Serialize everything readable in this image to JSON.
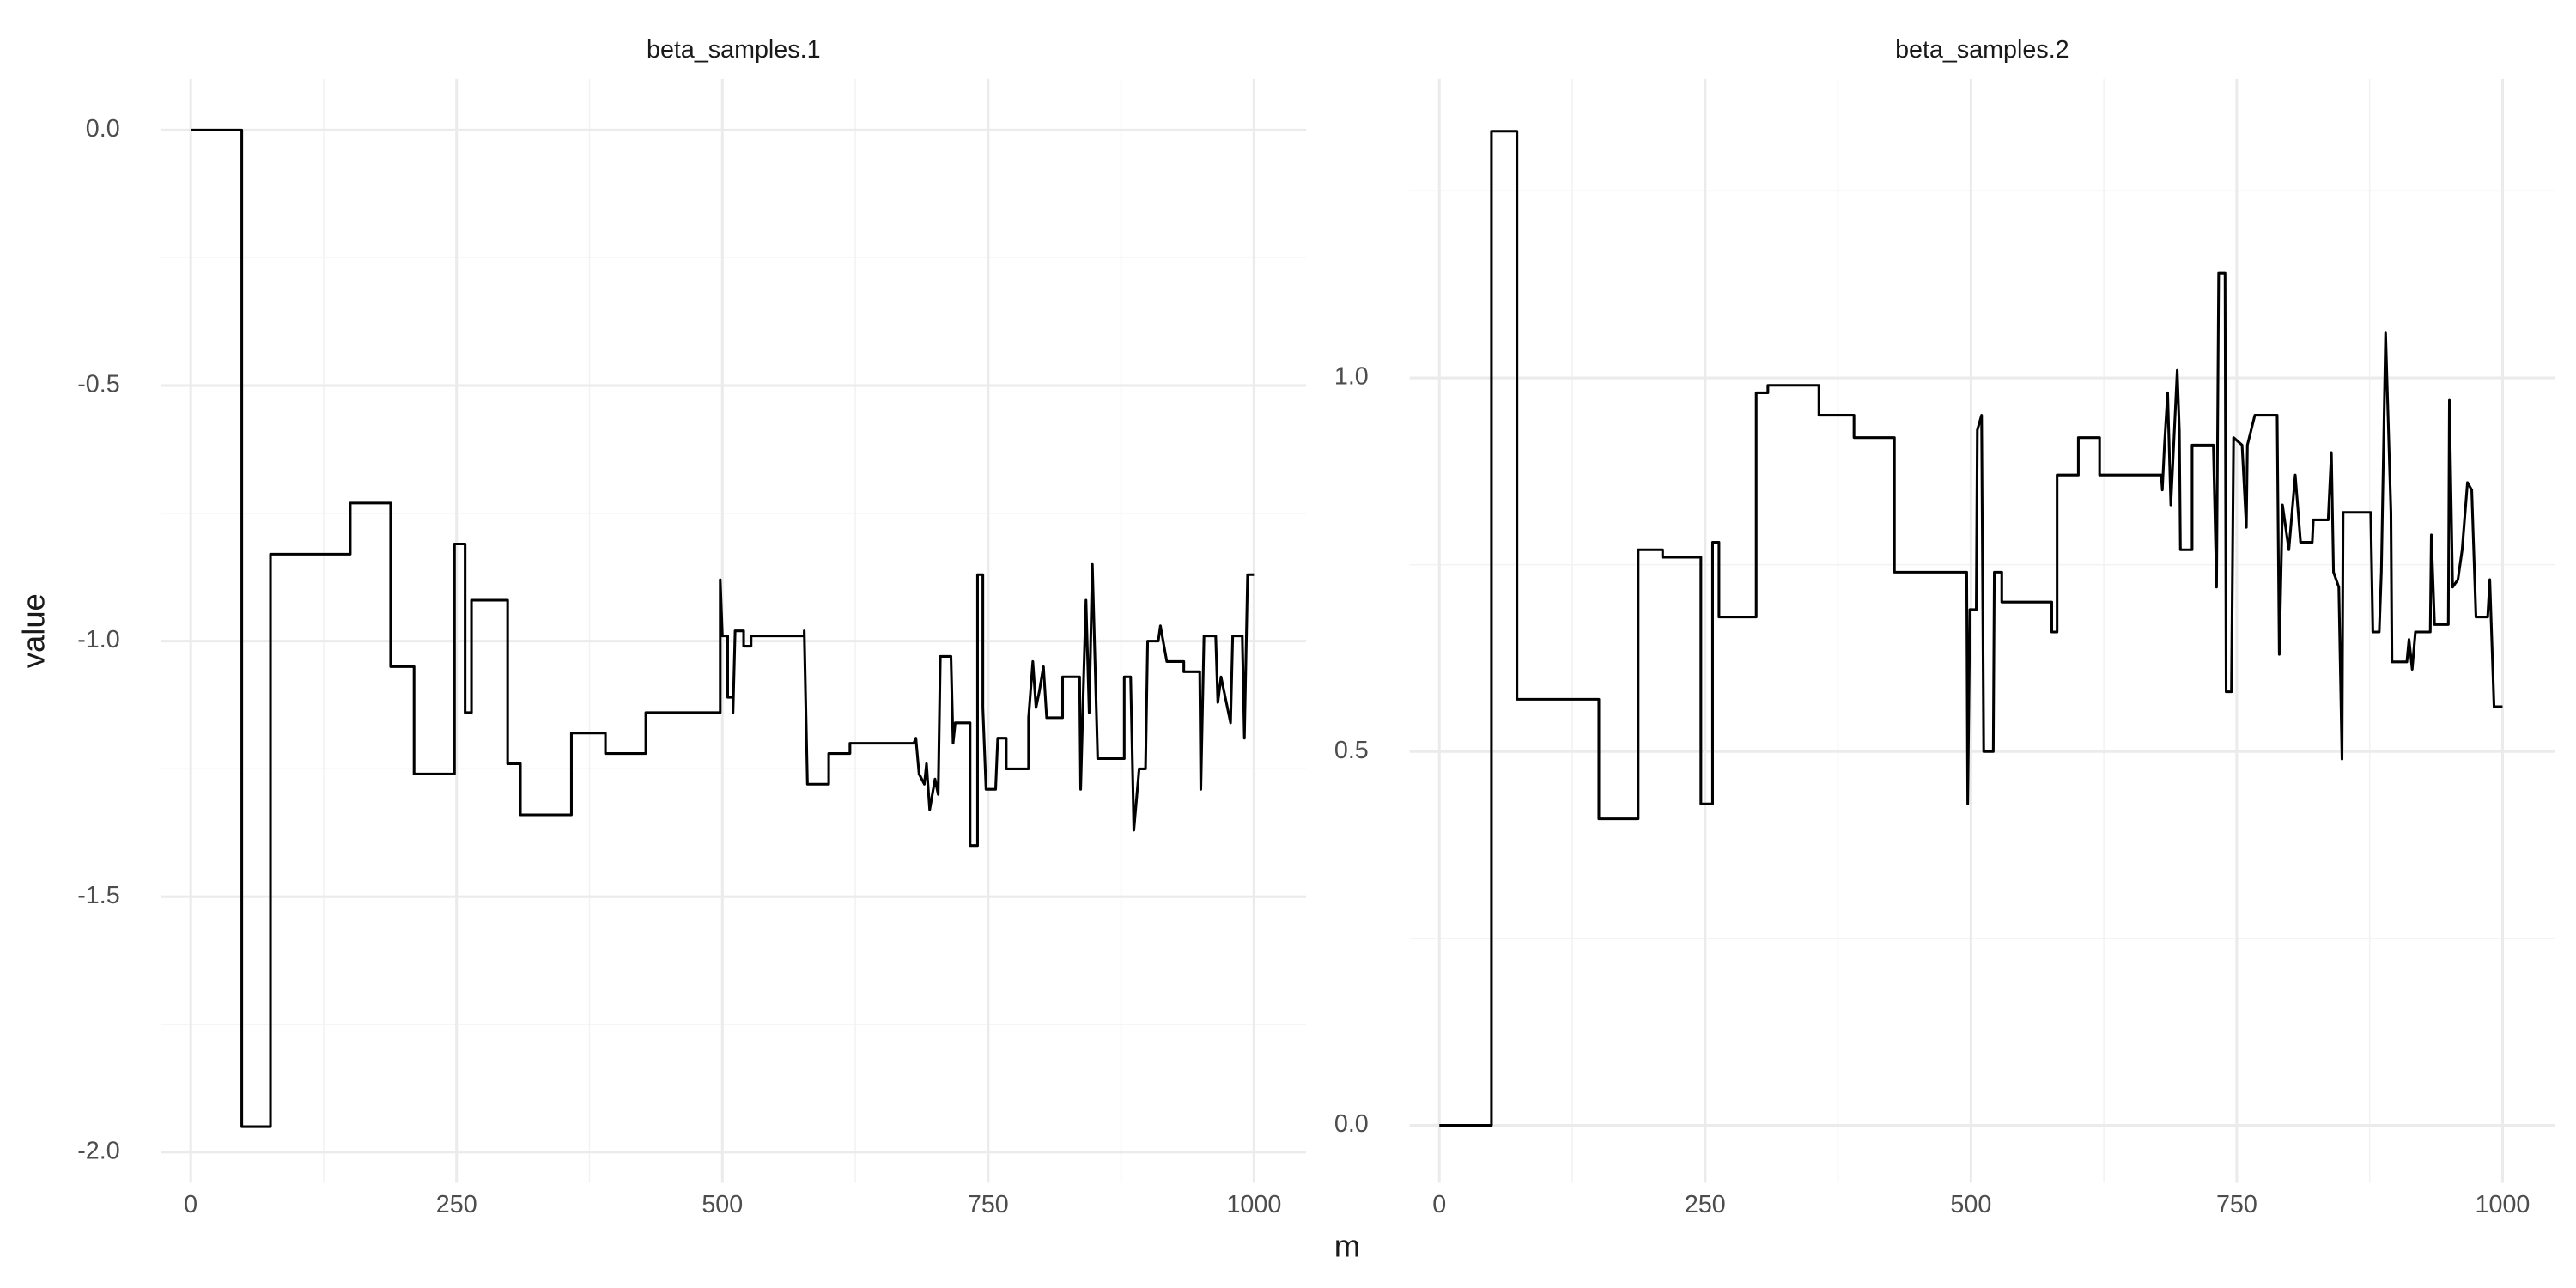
{
  "xlabel": "m",
  "ylabel": "value",
  "chart_data": [
    {
      "type": "line",
      "title": "beta_samples.1",
      "grid": true,
      "minor_grid": true,
      "xlim": [
        -28,
        1049
      ],
      "ylim": [
        -2.06,
        0.1
      ],
      "xticks": [
        0,
        250,
        500,
        750,
        1000
      ],
      "yticks": [
        {
          "value": -2,
          "label": "-2.0"
        },
        {
          "value": -1.5,
          "label": "-1.5"
        },
        {
          "value": -1,
          "label": "-1.0"
        },
        {
          "value": -0.5,
          "label": "-0.5"
        },
        {
          "value": 0,
          "label": "0.0"
        }
      ],
      "x": [
        0,
        48,
        48,
        75,
        75,
        150,
        150,
        188,
        188,
        210,
        210,
        248,
        248,
        258,
        258,
        264,
        264,
        298,
        298,
        310,
        310,
        358,
        358,
        390,
        390,
        428,
        428,
        498,
        498,
        500,
        505,
        505,
        510,
        510,
        512,
        520,
        520,
        527,
        527,
        577,
        577,
        580,
        600,
        600,
        620,
        620,
        680,
        682,
        685,
        690,
        692,
        695,
        700,
        703,
        705,
        715,
        717,
        719,
        733,
        733,
        740,
        740,
        745,
        745,
        748,
        757,
        759,
        767,
        767,
        788,
        788,
        792,
        795,
        798,
        802,
        805,
        820,
        820,
        836,
        837,
        840,
        842,
        845,
        848,
        853,
        878,
        878,
        884,
        887,
        892,
        898,
        900,
        910,
        912,
        918,
        934,
        934,
        949,
        950,
        953,
        964,
        966,
        969,
        978,
        980,
        989,
        991,
        994,
        1000
      ],
      "series": [
        {
          "color": "#000000",
          "values": [
            0,
            0,
            -1.95,
            -1.95,
            -0.83,
            -0.83,
            -0.73,
            -0.73,
            -1.05,
            -1.05,
            -1.26,
            -1.26,
            -0.81,
            -0.81,
            -1.14,
            -1.14,
            -0.92,
            -0.92,
            -1.24,
            -1.24,
            -1.34,
            -1.34,
            -1.18,
            -1.18,
            -1.22,
            -1.22,
            -1.14,
            -1.14,
            -0.88,
            -0.99,
            -0.99,
            -1.11,
            -1.11,
            -1.14,
            -0.98,
            -0.98,
            -1.01,
            -1.01,
            -0.99,
            -0.99,
            -0.98,
            -1.28,
            -1.28,
            -1.22,
            -1.22,
            -1.2,
            -1.2,
            -1.19,
            -1.26,
            -1.28,
            -1.24,
            -1.33,
            -1.27,
            -1.3,
            -1.03,
            -1.03,
            -1.2,
            -1.16,
            -1.16,
            -1.4,
            -1.4,
            -0.87,
            -0.87,
            -1.13,
            -1.29,
            -1.29,
            -1.19,
            -1.19,
            -1.25,
            -1.25,
            -1.15,
            -1.04,
            -1.13,
            -1.1,
            -1.05,
            -1.15,
            -1.15,
            -1.07,
            -1.07,
            -1.29,
            -1.06,
            -0.92,
            -1.14,
            -0.85,
            -1.23,
            -1.23,
            -1.07,
            -1.07,
            -1.37,
            -1.25,
            -1.25,
            -1.0,
            -1.0,
            -0.97,
            -1.04,
            -1.04,
            -1.06,
            -1.06,
            -1.29,
            -0.99,
            -0.99,
            -1.12,
            -1.07,
            -1.16,
            -0.99,
            -0.99,
            -1.19,
            -0.87,
            -0.87
          ]
        }
      ]
    },
    {
      "type": "line",
      "title": "beta_samples.2",
      "grid": true,
      "minor_grid": true,
      "xlim": [
        -28,
        1049
      ],
      "ylim": [
        -0.077,
        1.4
      ],
      "xticks": [
        0,
        250,
        500,
        750,
        1000
      ],
      "yticks": [
        {
          "value": 0,
          "label": "0.0"
        },
        {
          "value": 0.5,
          "label": "0.5"
        },
        {
          "value": 1,
          "label": "1.0"
        }
      ],
      "x": [
        0,
        49,
        49,
        73,
        73,
        150,
        150,
        187,
        187,
        210,
        210,
        246,
        246,
        257,
        257,
        263,
        263,
        298,
        298,
        309,
        309,
        357,
        357,
        390,
        390,
        428,
        428,
        496,
        497,
        499,
        505,
        506,
        510,
        512,
        521,
        522,
        529,
        529,
        576,
        576,
        581,
        581,
        601,
        601,
        621,
        621,
        679,
        680,
        682,
        685,
        688,
        694,
        696,
        697,
        708,
        708,
        728,
        731,
        733,
        739,
        740,
        745,
        747,
        755,
        759,
        760,
        767,
        788,
        790,
        793,
        799,
        805,
        810,
        821,
        822,
        836,
        839,
        841,
        846,
        849,
        850,
        876,
        878,
        884,
        886,
        890,
        895,
        896,
        910,
        912,
        915,
        918,
        932,
        933,
        936,
        949,
        950,
        953,
        958,
        962,
        967,
        971,
        975,
        986,
        988,
        992,
        1000
      ],
      "series": [
        {
          "color": "#000000",
          "values": [
            0,
            0,
            1.33,
            1.33,
            0.57,
            0.57,
            0.41,
            0.41,
            0.77,
            0.77,
            0.76,
            0.76,
            0.43,
            0.43,
            0.78,
            0.78,
            0.68,
            0.68,
            0.98,
            0.98,
            0.99,
            0.99,
            0.95,
            0.95,
            0.92,
            0.92,
            0.74,
            0.74,
            0.43,
            0.69,
            0.69,
            0.93,
            0.95,
            0.5,
            0.5,
            0.74,
            0.74,
            0.7,
            0.7,
            0.66,
            0.66,
            0.87,
            0.87,
            0.92,
            0.92,
            0.87,
            0.87,
            0.85,
            0.91,
            0.98,
            0.83,
            1.01,
            0.93,
            0.77,
            0.77,
            0.91,
            0.91,
            0.72,
            1.14,
            1.14,
            0.58,
            0.58,
            0.92,
            0.91,
            0.8,
            0.91,
            0.95,
            0.95,
            0.63,
            0.83,
            0.77,
            0.87,
            0.78,
            0.78,
            0.81,
            0.81,
            0.9,
            0.74,
            0.72,
            0.49,
            0.82,
            0.82,
            0.66,
            0.66,
            0.74,
            1.06,
            0.82,
            0.62,
            0.62,
            0.65,
            0.61,
            0.66,
            0.66,
            0.79,
            0.67,
            0.67,
            0.97,
            0.72,
            0.73,
            0.77,
            0.86,
            0.85,
            0.68,
            0.68,
            0.73,
            0.56,
            0.56
          ]
        }
      ]
    }
  ]
}
